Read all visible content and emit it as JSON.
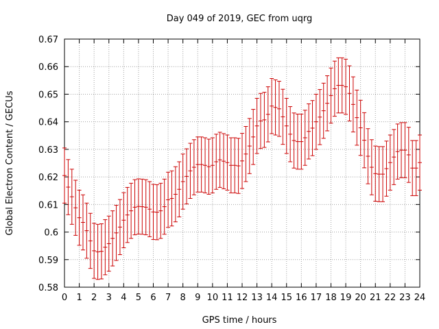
{
  "chart_data": {
    "type": "scatter",
    "title": "Day 049 of 2019, GEC from uqrg",
    "xlabel": "GPS time / hours",
    "ylabel": "Global Electron Content / GECUs",
    "xlim": [
      0,
      24
    ],
    "ylim": [
      0.58,
      0.67
    ],
    "xticks": [
      0,
      1,
      2,
      3,
      4,
      5,
      6,
      7,
      8,
      9,
      10,
      11,
      12,
      13,
      14,
      15,
      16,
      17,
      18,
      19,
      20,
      21,
      22,
      23,
      24
    ],
    "yticks": [
      "0.58",
      "0.59",
      "0.6",
      "0.61",
      "0.62",
      "0.63",
      "0.64",
      "0.65",
      "0.66",
      "0.67"
    ],
    "grid": true,
    "error_bars": true,
    "color": "#cc0000",
    "series": [
      {
        "x": [
          0,
          0.25,
          0.5,
          0.75,
          1,
          1.25,
          1.5,
          1.75,
          2,
          2.25,
          2.5,
          2.75,
          3,
          3.25,
          3.5,
          3.75,
          4,
          4.25,
          4.5,
          4.75,
          5,
          5.25,
          5.5,
          5.75,
          6,
          6.25,
          6.5,
          6.75,
          7,
          7.25,
          7.5,
          7.75,
          8,
          8.25,
          8.5,
          8.75,
          9,
          9.25,
          9.5,
          9.75,
          10,
          10.25,
          10.5,
          10.75,
          11,
          11.25,
          11.5,
          11.75,
          12,
          12.25,
          12.5,
          12.75,
          13,
          13.25,
          13.5,
          13.75,
          14,
          14.25,
          14.5,
          14.75,
          15,
          15.25,
          15.5,
          15.75,
          16,
          16.25,
          16.5,
          16.75,
          17,
          17.25,
          17.5,
          17.75,
          18,
          18.25,
          18.5,
          18.75,
          19,
          19.25,
          19.5,
          19.75,
          20,
          20.25,
          20.5,
          20.75,
          21,
          21.25,
          21.5,
          21.75,
          22,
          22.25,
          22.5,
          22.75,
          23,
          23.25,
          23.5,
          23.75,
          24
        ],
        "y": [
          0.6205,
          0.6163,
          0.6128,
          0.6088,
          0.6052,
          0.6035,
          0.6005,
          0.5968,
          0.5932,
          0.5928,
          0.593,
          0.5945,
          0.5958,
          0.5977,
          0.5997,
          0.6018,
          0.6043,
          0.6062,
          0.6077,
          0.609,
          0.6093,
          0.6092,
          0.609,
          0.6083,
          0.6073,
          0.6072,
          0.6077,
          0.6092,
          0.6117,
          0.6122,
          0.6137,
          0.6155,
          0.6183,
          0.6202,
          0.6222,
          0.6235,
          0.6245,
          0.6245,
          0.6242,
          0.6237,
          0.6242,
          0.6255,
          0.6262,
          0.6257,
          0.6252,
          0.6242,
          0.6242,
          0.624,
          0.6258,
          0.6283,
          0.6312,
          0.6345,
          0.6385,
          0.6403,
          0.6407,
          0.6427,
          0.6457,
          0.6452,
          0.6447,
          0.6418,
          0.6385,
          0.6355,
          0.6332,
          0.6328,
          0.6328,
          0.6342,
          0.6365,
          0.6377,
          0.64,
          0.6417,
          0.644,
          0.6467,
          0.6495,
          0.652,
          0.6532,
          0.6532,
          0.6527,
          0.6503,
          0.6463,
          0.6415,
          0.6378,
          0.6333,
          0.6275,
          0.6235,
          0.6212,
          0.621,
          0.621,
          0.623,
          0.6252,
          0.6272,
          0.6292,
          0.6297,
          0.6297,
          0.628,
          0.6232,
          0.6232,
          0.6252
        ],
        "err": [
          0.01,
          0.01,
          0.01,
          0.01,
          0.01,
          0.01,
          0.01,
          0.01,
          0.01,
          0.01,
          0.01,
          0.01,
          0.01,
          0.01,
          0.01,
          0.01,
          0.01,
          0.01,
          0.01,
          0.01,
          0.01,
          0.01,
          0.01,
          0.01,
          0.01,
          0.01,
          0.01,
          0.01,
          0.01,
          0.01,
          0.01,
          0.01,
          0.01,
          0.01,
          0.01,
          0.01,
          0.01,
          0.01,
          0.01,
          0.01,
          0.01,
          0.01,
          0.01,
          0.01,
          0.01,
          0.01,
          0.01,
          0.01,
          0.01,
          0.01,
          0.01,
          0.01,
          0.01,
          0.01,
          0.01,
          0.01,
          0.01,
          0.01,
          0.01,
          0.01,
          0.01,
          0.01,
          0.01,
          0.01,
          0.01,
          0.01,
          0.01,
          0.01,
          0.01,
          0.01,
          0.01,
          0.01,
          0.01,
          0.01,
          0.01,
          0.01,
          0.01,
          0.01,
          0.01,
          0.01,
          0.01,
          0.01,
          0.01,
          0.01,
          0.01,
          0.01,
          0.01,
          0.01,
          0.01,
          0.01,
          0.01,
          0.01,
          0.01,
          0.01,
          0.01,
          0.01,
          0.01
        ]
      }
    ]
  }
}
